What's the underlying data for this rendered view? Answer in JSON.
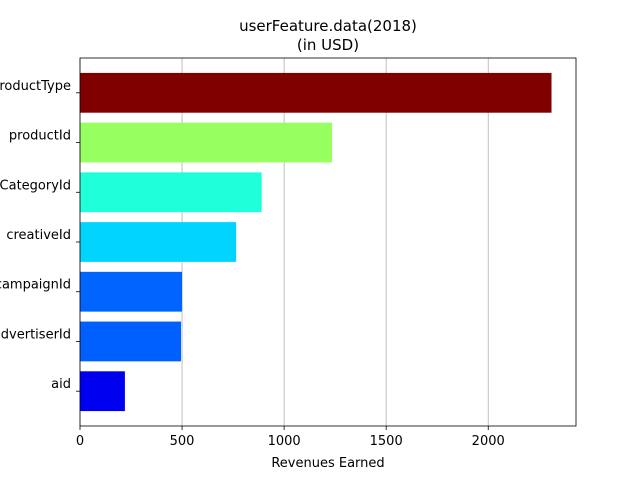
{
  "chart_data": {
    "type": "bar",
    "orientation": "horizontal",
    "title": "userFeature.data(2018)",
    "subtitle": "(in USD)",
    "xlabel": "Revenues Earned",
    "ylabel": "",
    "categories": [
      "aid",
      "advertiserId",
      "campaignId",
      "creativeId",
      "adCategoryId",
      "productId",
      "productType"
    ],
    "values": [
      220,
      495,
      500,
      765,
      890,
      1235,
      2310
    ],
    "colors": [
      "#0000f1",
      "#0060ff",
      "#0064ff",
      "#00d4ff",
      "#1effda",
      "#97ff60",
      "#800000"
    ],
    "xlim": [
      0,
      2430
    ],
    "xticks": [
      0,
      500,
      1000,
      1500,
      2000
    ],
    "grid": "vertical",
    "legend": "none"
  }
}
